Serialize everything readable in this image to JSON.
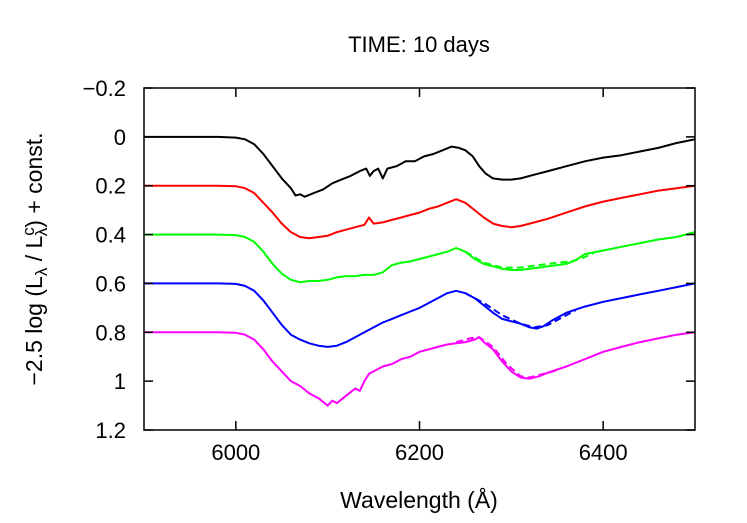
{
  "chart_data": {
    "type": "line",
    "title": "TIME: 10 days",
    "xlabel": "Wavelength (Å)",
    "ylabel": {
      "prefix": "−2.5 log (L",
      "sub1": "λ",
      "mid": " / L",
      "sup": "c",
      "sub2": "λ",
      "suffix": ") + const."
    },
    "xlim": [
      5900,
      6500
    ],
    "ylim": [
      -0.2,
      1.2
    ],
    "y_inverted": true,
    "xticks": [
      6000,
      6200,
      6400
    ],
    "xtick_labels": [
      "6000",
      "6200",
      "6400"
    ],
    "yticks": [
      -0.2,
      0,
      0.2,
      0.4,
      0.6,
      0.8,
      1,
      1.2
    ],
    "ytick_labels": [
      "−0.2",
      "0",
      "0.2",
      "0.4",
      "0.6",
      "0.8",
      "1",
      "1.2"
    ],
    "grid": false,
    "series": [
      {
        "color": "#000000",
        "style": "solid",
        "points": [
          [
            5900,
            0
          ],
          [
            5980,
            0
          ],
          [
            6000,
            0.003
          ],
          [
            6010,
            0.01
          ],
          [
            6020,
            0.03
          ],
          [
            6030,
            0.07
          ],
          [
            6040,
            0.12
          ],
          [
            6050,
            0.17
          ],
          [
            6060,
            0.21
          ],
          [
            6065,
            0.24
          ],
          [
            6070,
            0.235
          ],
          [
            6075,
            0.245
          ],
          [
            6085,
            0.23
          ],
          [
            6095,
            0.215
          ],
          [
            6105,
            0.19
          ],
          [
            6115,
            0.175
          ],
          [
            6125,
            0.16
          ],
          [
            6135,
            0.14
          ],
          [
            6142,
            0.13
          ],
          [
            6146,
            0.16
          ],
          [
            6150,
            0.14
          ],
          [
            6155,
            0.13
          ],
          [
            6160,
            0.17
          ],
          [
            6165,
            0.13
          ],
          [
            6175,
            0.12
          ],
          [
            6185,
            0.1
          ],
          [
            6195,
            0.1
          ],
          [
            6205,
            0.08
          ],
          [
            6215,
            0.07
          ],
          [
            6225,
            0.055
          ],
          [
            6235,
            0.04
          ],
          [
            6243,
            0.045
          ],
          [
            6250,
            0.055
          ],
          [
            6258,
            0.08
          ],
          [
            6265,
            0.12
          ],
          [
            6272,
            0.15
          ],
          [
            6280,
            0.17
          ],
          [
            6290,
            0.175
          ],
          [
            6300,
            0.175
          ],
          [
            6310,
            0.17
          ],
          [
            6325,
            0.155
          ],
          [
            6340,
            0.14
          ],
          [
            6360,
            0.12
          ],
          [
            6380,
            0.1
          ],
          [
            6400,
            0.085
          ],
          [
            6420,
            0.075
          ],
          [
            6440,
            0.06
          ],
          [
            6460,
            0.045
          ],
          [
            6480,
            0.025
          ],
          [
            6500,
            0.01
          ]
        ]
      },
      {
        "color": "#ff0000",
        "style": "solid",
        "points": [
          [
            5900,
            0.2
          ],
          [
            5980,
            0.2
          ],
          [
            6000,
            0.202
          ],
          [
            6010,
            0.21
          ],
          [
            6020,
            0.23
          ],
          [
            6030,
            0.27
          ],
          [
            6040,
            0.31
          ],
          [
            6050,
            0.355
          ],
          [
            6060,
            0.39
          ],
          [
            6070,
            0.41
          ],
          [
            6080,
            0.415
          ],
          [
            6090,
            0.41
          ],
          [
            6100,
            0.405
          ],
          [
            6110,
            0.39
          ],
          [
            6120,
            0.38
          ],
          [
            6130,
            0.37
          ],
          [
            6140,
            0.36
          ],
          [
            6145,
            0.33
          ],
          [
            6150,
            0.355
          ],
          [
            6160,
            0.35
          ],
          [
            6170,
            0.34
          ],
          [
            6180,
            0.33
          ],
          [
            6190,
            0.32
          ],
          [
            6200,
            0.31
          ],
          [
            6210,
            0.295
          ],
          [
            6220,
            0.285
          ],
          [
            6230,
            0.27
          ],
          [
            6240,
            0.255
          ],
          [
            6250,
            0.27
          ],
          [
            6260,
            0.3
          ],
          [
            6270,
            0.33
          ],
          [
            6280,
            0.355
          ],
          [
            6290,
            0.365
          ],
          [
            6300,
            0.37
          ],
          [
            6310,
            0.365
          ],
          [
            6320,
            0.355
          ],
          [
            6340,
            0.335
          ],
          [
            6360,
            0.31
          ],
          [
            6380,
            0.285
          ],
          [
            6400,
            0.265
          ],
          [
            6420,
            0.25
          ],
          [
            6440,
            0.235
          ],
          [
            6460,
            0.22
          ],
          [
            6480,
            0.21
          ],
          [
            6500,
            0.2
          ]
        ]
      },
      {
        "color": "#00ff00",
        "style": "solid",
        "points": [
          [
            5900,
            0.4
          ],
          [
            5980,
            0.4
          ],
          [
            6000,
            0.402
          ],
          [
            6010,
            0.41
          ],
          [
            6020,
            0.43
          ],
          [
            6030,
            0.47
          ],
          [
            6040,
            0.52
          ],
          [
            6050,
            0.56
          ],
          [
            6060,
            0.585
          ],
          [
            6070,
            0.595
          ],
          [
            6080,
            0.59
          ],
          [
            6090,
            0.59
          ],
          [
            6100,
            0.585
          ],
          [
            6110,
            0.575
          ],
          [
            6120,
            0.57
          ],
          [
            6130,
            0.57
          ],
          [
            6140,
            0.565
          ],
          [
            6150,
            0.565
          ],
          [
            6160,
            0.555
          ],
          [
            6170,
            0.525
          ],
          [
            6180,
            0.515
          ],
          [
            6190,
            0.51
          ],
          [
            6200,
            0.5
          ],
          [
            6210,
            0.49
          ],
          [
            6220,
            0.48
          ],
          [
            6230,
            0.47
          ],
          [
            6240,
            0.455
          ],
          [
            6250,
            0.47
          ],
          [
            6260,
            0.5
          ],
          [
            6270,
            0.52
          ],
          [
            6280,
            0.53
          ],
          [
            6290,
            0.54
          ],
          [
            6300,
            0.545
          ],
          [
            6310,
            0.545
          ],
          [
            6320,
            0.54
          ],
          [
            6330,
            0.535
          ],
          [
            6340,
            0.53
          ],
          [
            6350,
            0.525
          ],
          [
            6360,
            0.52
          ],
          [
            6370,
            0.505
          ],
          [
            6380,
            0.48
          ],
          [
            6400,
            0.465
          ],
          [
            6420,
            0.45
          ],
          [
            6440,
            0.435
          ],
          [
            6460,
            0.42
          ],
          [
            6480,
            0.41
          ],
          [
            6500,
            0.39
          ]
        ]
      },
      {
        "color": "#00ff00",
        "style": "dashed",
        "points": [
          [
            6250,
            0.47
          ],
          [
            6270,
            0.515
          ],
          [
            6290,
            0.535
          ],
          [
            6310,
            0.535
          ],
          [
            6330,
            0.525
          ],
          [
            6350,
            0.515
          ],
          [
            6365,
            0.51
          ],
          [
            6375,
            0.5
          ],
          [
            6390,
            0.475
          ]
        ]
      },
      {
        "color": "#0000ff",
        "style": "solid",
        "points": [
          [
            5900,
            0.6
          ],
          [
            5980,
            0.6
          ],
          [
            6000,
            0.602
          ],
          [
            6010,
            0.61
          ],
          [
            6020,
            0.63
          ],
          [
            6030,
            0.67
          ],
          [
            6040,
            0.72
          ],
          [
            6050,
            0.77
          ],
          [
            6060,
            0.81
          ],
          [
            6070,
            0.83
          ],
          [
            6080,
            0.845
          ],
          [
            6090,
            0.855
          ],
          [
            6100,
            0.86
          ],
          [
            6110,
            0.855
          ],
          [
            6120,
            0.84
          ],
          [
            6130,
            0.82
          ],
          [
            6140,
            0.8
          ],
          [
            6150,
            0.78
          ],
          [
            6160,
            0.76
          ],
          [
            6170,
            0.745
          ],
          [
            6180,
            0.73
          ],
          [
            6190,
            0.715
          ],
          [
            6200,
            0.7
          ],
          [
            6210,
            0.68
          ],
          [
            6220,
            0.66
          ],
          [
            6230,
            0.64
          ],
          [
            6240,
            0.63
          ],
          [
            6250,
            0.64
          ],
          [
            6260,
            0.66
          ],
          [
            6270,
            0.69
          ],
          [
            6280,
            0.72
          ],
          [
            6290,
            0.745
          ],
          [
            6300,
            0.755
          ],
          [
            6310,
            0.765
          ],
          [
            6320,
            0.78
          ],
          [
            6328,
            0.785
          ],
          [
            6335,
            0.775
          ],
          [
            6345,
            0.75
          ],
          [
            6360,
            0.72
          ],
          [
            6380,
            0.695
          ],
          [
            6400,
            0.675
          ],
          [
            6420,
            0.66
          ],
          [
            6440,
            0.645
          ],
          [
            6460,
            0.63
          ],
          [
            6480,
            0.615
          ],
          [
            6500,
            0.6
          ]
        ]
      },
      {
        "color": "#0000ff",
        "style": "dashed",
        "points": [
          [
            6250,
            0.64
          ],
          [
            6270,
            0.68
          ],
          [
            6290,
            0.73
          ],
          [
            6310,
            0.765
          ],
          [
            6325,
            0.78
          ],
          [
            6340,
            0.77
          ],
          [
            6355,
            0.74
          ],
          [
            6370,
            0.71
          ]
        ]
      },
      {
        "color": "#ff00ff",
        "style": "solid",
        "points": [
          [
            5900,
            0.8
          ],
          [
            5980,
            0.8
          ],
          [
            6000,
            0.802
          ],
          [
            6010,
            0.81
          ],
          [
            6020,
            0.83
          ],
          [
            6030,
            0.87
          ],
          [
            6040,
            0.92
          ],
          [
            6050,
            0.96
          ],
          [
            6060,
            1.0
          ],
          [
            6070,
            1.02
          ],
          [
            6080,
            1.05
          ],
          [
            6090,
            1.07
          ],
          [
            6100,
            1.1
          ],
          [
            6105,
            1.08
          ],
          [
            6110,
            1.09
          ],
          [
            6120,
            1.06
          ],
          [
            6130,
            1.03
          ],
          [
            6135,
            1.04
          ],
          [
            6140,
            1.0
          ],
          [
            6145,
            0.97
          ],
          [
            6150,
            0.96
          ],
          [
            6160,
            0.94
          ],
          [
            6170,
            0.93
          ],
          [
            6180,
            0.91
          ],
          [
            6190,
            0.9
          ],
          [
            6200,
            0.88
          ],
          [
            6210,
            0.87
          ],
          [
            6220,
            0.86
          ],
          [
            6230,
            0.85
          ],
          [
            6240,
            0.845
          ],
          [
            6250,
            0.84
          ],
          [
            6260,
            0.83
          ],
          [
            6265,
            0.82
          ],
          [
            6270,
            0.84
          ],
          [
            6280,
            0.87
          ],
          [
            6290,
            0.92
          ],
          [
            6300,
            0.96
          ],
          [
            6310,
            0.985
          ],
          [
            6320,
            0.99
          ],
          [
            6330,
            0.98
          ],
          [
            6340,
            0.965
          ],
          [
            6360,
            0.94
          ],
          [
            6380,
            0.91
          ],
          [
            6400,
            0.88
          ],
          [
            6420,
            0.86
          ],
          [
            6440,
            0.84
          ],
          [
            6460,
            0.825
          ],
          [
            6480,
            0.81
          ],
          [
            6500,
            0.8
          ]
        ]
      },
      {
        "color": "#ff00ff",
        "style": "dashed",
        "points": [
          [
            6240,
            0.84
          ],
          [
            6255,
            0.825
          ],
          [
            6265,
            0.82
          ],
          [
            6280,
            0.86
          ],
          [
            6295,
            0.93
          ],
          [
            6310,
            0.98
          ],
          [
            6320,
            0.985
          ],
          [
            6335,
            0.97
          ],
          [
            6350,
            0.955
          ]
        ]
      }
    ]
  }
}
